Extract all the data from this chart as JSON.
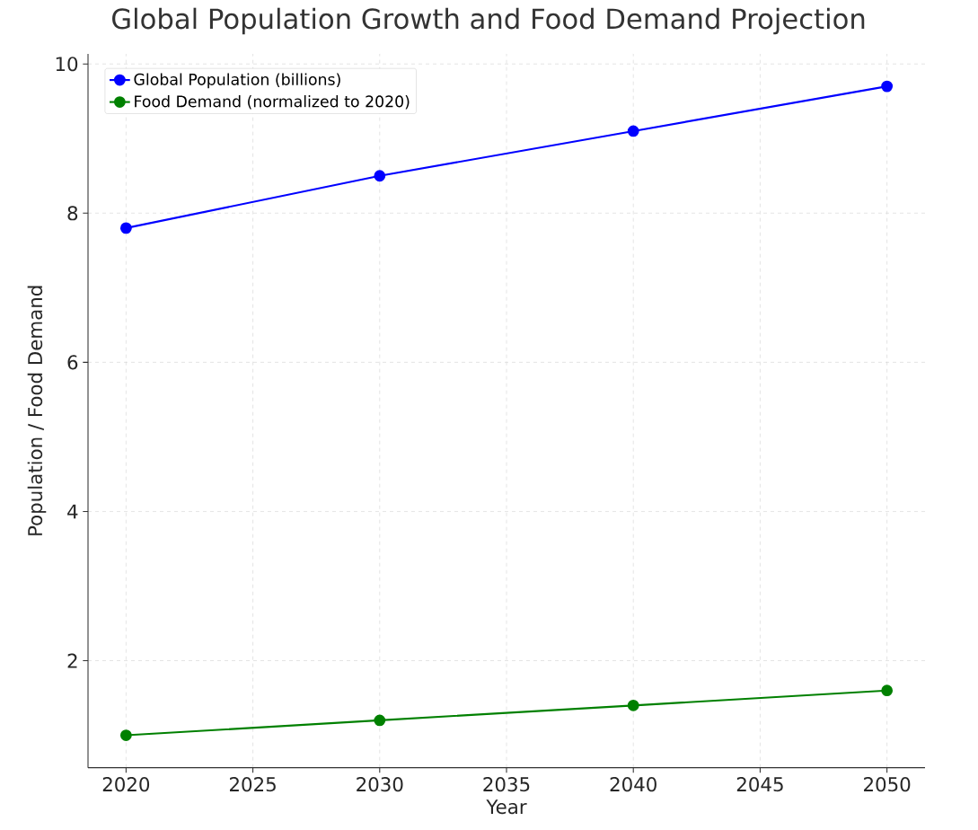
{
  "chart_data": {
    "type": "line",
    "title": "Global Population Growth and Food Demand Projection",
    "xlabel": "Year",
    "ylabel": "Population / Food Demand",
    "x": [
      2020,
      2030,
      2040,
      2050
    ],
    "series": [
      {
        "name": "Global Population (billions)",
        "color": "#0000ff",
        "values": [
          7.8,
          8.5,
          9.1,
          9.7
        ]
      },
      {
        "name": "Food Demand (normalized to 2020)",
        "color": "#008000",
        "values": [
          1.0,
          1.2,
          1.4,
          1.6
        ]
      }
    ],
    "xlim": [
      2018.5,
      2051.5
    ],
    "ylim": [
      0.565,
      10.135
    ],
    "xticks": [
      2020,
      2025,
      2030,
      2035,
      2040,
      2045,
      2050
    ],
    "yticks": [
      2,
      4,
      6,
      8,
      10
    ],
    "grid": true,
    "legend": "top left",
    "marker": "circle",
    "line_style": "solid"
  }
}
